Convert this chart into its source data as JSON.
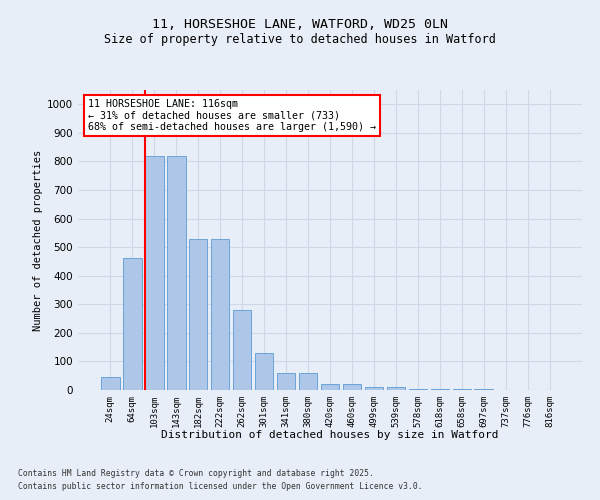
{
  "title_line1": "11, HORSESHOE LANE, WATFORD, WD25 0LN",
  "title_line2": "Size of property relative to detached houses in Watford",
  "xlabel": "Distribution of detached houses by size in Watford",
  "ylabel": "Number of detached properties",
  "categories": [
    "24sqm",
    "64sqm",
    "103sqm",
    "143sqm",
    "182sqm",
    "222sqm",
    "262sqm",
    "301sqm",
    "341sqm",
    "380sqm",
    "420sqm",
    "460sqm",
    "499sqm",
    "539sqm",
    "578sqm",
    "618sqm",
    "658sqm",
    "697sqm",
    "737sqm",
    "776sqm",
    "816sqm"
  ],
  "values": [
    45,
    463,
    820,
    820,
    527,
    527,
    280,
    130,
    58,
    58,
    22,
    22,
    12,
    12,
    5,
    5,
    2,
    2,
    1,
    1,
    0
  ],
  "bar_color": "#aec6e8",
  "bar_edge_color": "#5b9bd5",
  "grid_color": "#d0d8e8",
  "background_color": "#e8eef8",
  "vline_x_index": 2,
  "vline_color": "red",
  "annotation_text": "11 HORSESHOE LANE: 116sqm\n← 31% of detached houses are smaller (733)\n68% of semi-detached houses are larger (1,590) →",
  "annotation_box_color": "red",
  "ylim": [
    0,
    1050
  ],
  "yticks": [
    0,
    100,
    200,
    300,
    400,
    500,
    600,
    700,
    800,
    900,
    1000
  ],
  "footer_line1": "Contains HM Land Registry data © Crown copyright and database right 2025.",
  "footer_line2": "Contains public sector information licensed under the Open Government Licence v3.0."
}
